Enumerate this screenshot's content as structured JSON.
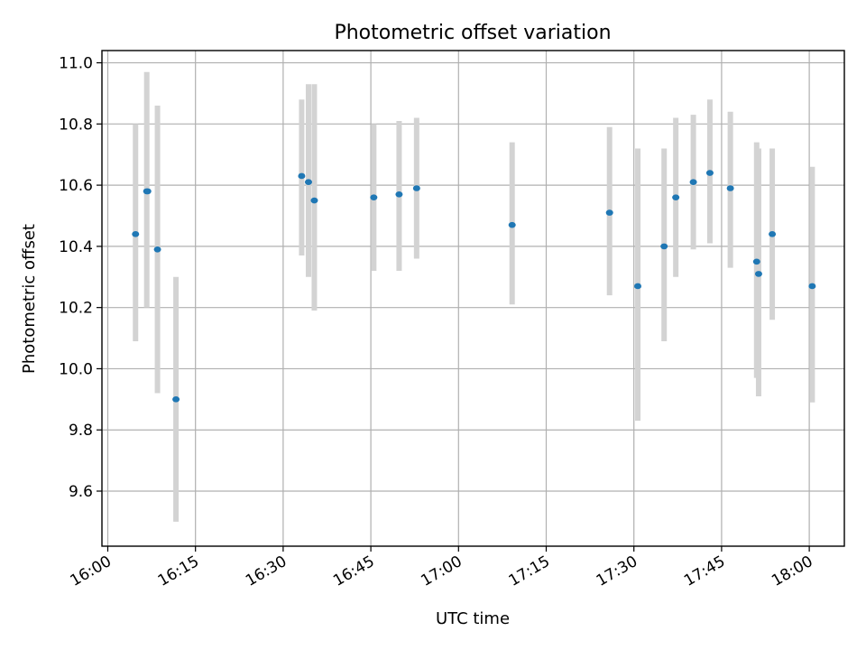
{
  "chart_data": {
    "type": "scatter",
    "title": "Photometric offset variation",
    "xlabel": "UTC time",
    "ylabel": "Photometric offset",
    "x_ticks": [
      "16:00",
      "16:15",
      "16:30",
      "16:45",
      "17:00",
      "17:15",
      "17:30",
      "17:45",
      "18:00"
    ],
    "y_ticks": [
      "9.6",
      "9.8",
      "10.0",
      "10.2",
      "10.4",
      "10.6",
      "10.8",
      "11.0"
    ],
    "xlim": [
      "15:59",
      "18:06"
    ],
    "ylim": [
      9.42,
      11.04
    ],
    "grid": true,
    "colors": {
      "point": "#1f77b4",
      "errorbar": "#d3d3d3"
    },
    "points": [
      {
        "time": "16:04:45",
        "y": 10.44,
        "ylow": 10.09,
        "yhigh": 10.8
      },
      {
        "time": "16:06:40",
        "y": 10.58,
        "ylow": 10.2,
        "yhigh": 10.97
      },
      {
        "time": "16:06:50",
        "y": 10.58
      },
      {
        "time": "16:08:30",
        "y": 10.39,
        "ylow": 9.92,
        "yhigh": 10.86
      },
      {
        "time": "16:11:40",
        "y": 9.9,
        "ylow": 9.5,
        "yhigh": 10.3
      },
      {
        "time": "16:33:10",
        "y": 10.63,
        "ylow": 10.37,
        "yhigh": 10.88
      },
      {
        "time": "16:34:20",
        "y": 10.61,
        "ylow": 10.3,
        "yhigh": 10.93
      },
      {
        "time": "16:35:20",
        "y": 10.55,
        "ylow": 10.19,
        "yhigh": 10.93
      },
      {
        "time": "16:45:30",
        "y": 10.56,
        "ylow": 10.32,
        "yhigh": 10.8
      },
      {
        "time": "16:49:50",
        "y": 10.57,
        "ylow": 10.32,
        "yhigh": 10.81
      },
      {
        "time": "16:52:50",
        "y": 10.59,
        "ylow": 10.36,
        "yhigh": 10.82
      },
      {
        "time": "17:09:10",
        "y": 10.47,
        "ylow": 10.21,
        "yhigh": 10.74
      },
      {
        "time": "17:25:50",
        "y": 10.51,
        "ylow": 10.24,
        "yhigh": 10.79
      },
      {
        "time": "17:30:40",
        "y": 10.27,
        "ylow": 9.83,
        "yhigh": 10.72
      },
      {
        "time": "17:35:10",
        "y": 10.4,
        "ylow": 10.09,
        "yhigh": 10.72
      },
      {
        "time": "17:37:10",
        "y": 10.56,
        "ylow": 10.3,
        "yhigh": 10.82
      },
      {
        "time": "17:40:10",
        "y": 10.61,
        "ylow": 10.39,
        "yhigh": 10.83
      },
      {
        "time": "17:43:00",
        "y": 10.64,
        "ylow": 10.41,
        "yhigh": 10.88
      },
      {
        "time": "17:46:30",
        "y": 10.59,
        "ylow": 10.33,
        "yhigh": 10.84
      },
      {
        "time": "17:51:00",
        "y": 10.35,
        "ylow": 9.97,
        "yhigh": 10.74
      },
      {
        "time": "17:51:20",
        "y": 10.31,
        "ylow": 9.91,
        "yhigh": 10.72
      },
      {
        "time": "17:53:40",
        "y": 10.44,
        "ylow": 10.16,
        "yhigh": 10.72
      },
      {
        "time": "18:00:30",
        "y": 10.27,
        "ylow": 9.89,
        "yhigh": 10.66
      }
    ]
  }
}
